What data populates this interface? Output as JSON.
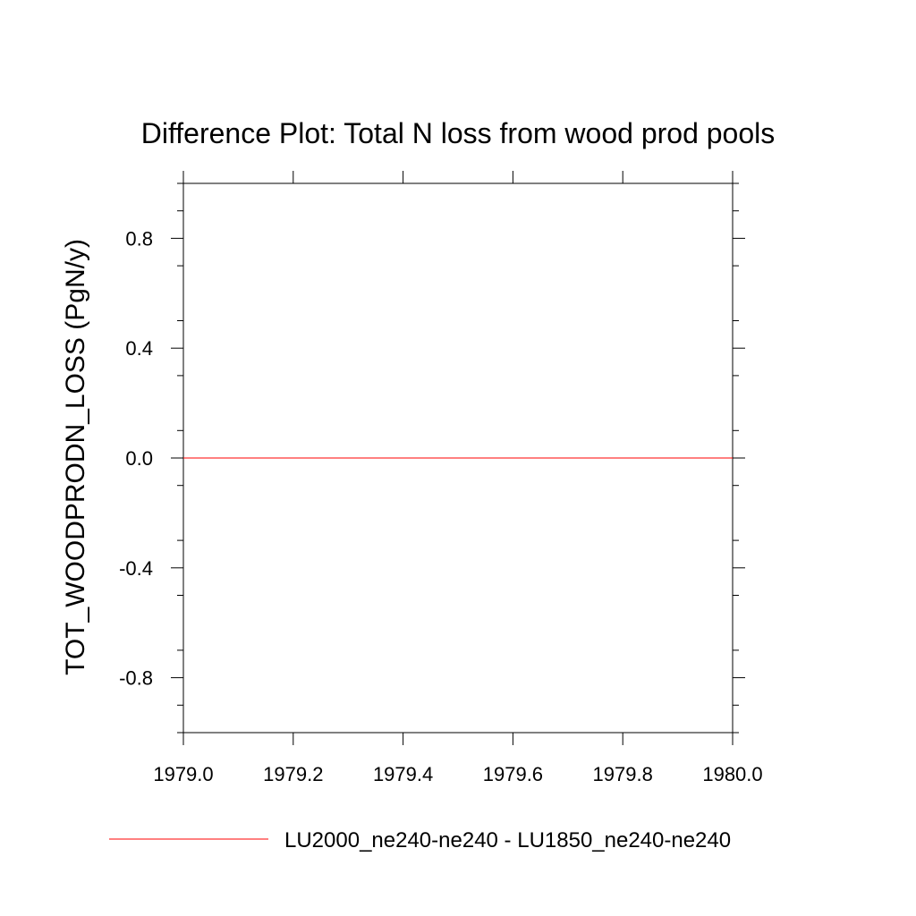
{
  "chart_data": {
    "type": "line",
    "title": "Difference Plot: Total N loss from wood prod pools",
    "xlabel": "",
    "ylabel": "TOT_WOODPRODN_LOSS  (PgN/y)",
    "xlim": [
      1979.0,
      1980.0
    ],
    "ylim": [
      -1.0,
      1.0
    ],
    "x_ticks": [
      "1979.0",
      "1979.2",
      "1979.4",
      "1979.6",
      "1979.8",
      "1980.0"
    ],
    "y_ticks": [
      "0.8",
      "0.4",
      "0.0",
      "-0.4",
      "-0.8"
    ],
    "grid": false,
    "legend_position": "bottom",
    "series": [
      {
        "name": "LU2000_ne240-ne240 - LU1850_ne240-ne240",
        "color": "#ff0000",
        "x": [
          1979.0,
          1980.0
        ],
        "y": [
          0.0,
          0.0
        ]
      }
    ]
  }
}
